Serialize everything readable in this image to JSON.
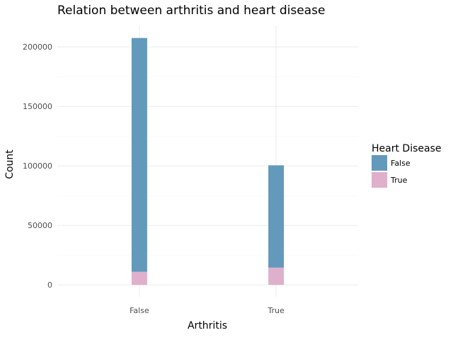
{
  "chart_data": {
    "type": "bar",
    "stacked": true,
    "title": "Relation between arthritis and heart disease",
    "xlabel": "Arthritis",
    "ylabel": "Count",
    "categories": [
      "False",
      "True"
    ],
    "ylim": [
      -10000,
      218000
    ],
    "yticks": [
      0,
      50000,
      100000,
      150000,
      200000
    ],
    "ytick_labels": [
      "0",
      "50000",
      "100000",
      "150000",
      "200000"
    ],
    "grid": true,
    "legend": {
      "title": "Heart Disease",
      "position": "right"
    },
    "series": [
      {
        "name": "True",
        "values": [
          11000,
          14500
        ],
        "color": "#dfb0cb"
      },
      {
        "name": "False",
        "values": [
          196500,
          86000
        ],
        "color": "#6399bb"
      }
    ]
  }
}
